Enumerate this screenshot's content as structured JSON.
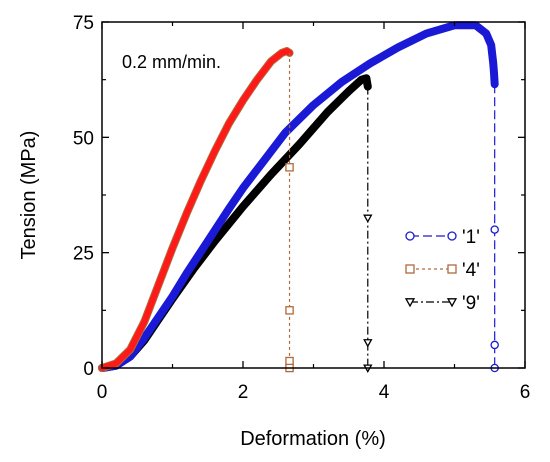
{
  "chart_data": {
    "type": "line",
    "title": "",
    "xlabel": "Deformation (%)",
    "ylabel": "Tension (MPa)",
    "xlim": [
      0,
      6
    ],
    "ylim": [
      0,
      75
    ],
    "xticks": [
      "0",
      "2",
      "4",
      "6"
    ],
    "yticks": [
      "0",
      "25",
      "50",
      "75"
    ],
    "grid": false,
    "legend_position": "right",
    "annotation": "0.2 mm/min.",
    "series": [
      {
        "name": "'1'",
        "color": "#1a1ad6",
        "marker": "circle",
        "dash": "long-dash",
        "x": [
          0,
          0.2,
          0.4,
          0.6,
          0.8,
          1.0,
          1.2,
          1.5,
          1.8,
          2.0,
          2.3,
          2.6,
          3.0,
          3.4,
          3.8,
          4.2,
          4.6,
          5.0,
          5.3,
          5.45,
          5.52,
          5.55,
          5.56,
          5.57,
          5.57,
          5.57,
          5.57
        ],
        "y": [
          0,
          0.5,
          2.5,
          6.5,
          11,
          15.5,
          20.5,
          27.5,
          34.5,
          39,
          45,
          51,
          57,
          62,
          66,
          69.5,
          72.5,
          74.3,
          74.3,
          72.5,
          70,
          66,
          64,
          61.5,
          30,
          5,
          0
        ]
      },
      {
        "name": "'4'",
        "color": "#b06a3a",
        "fill_color": "#ff1a1a",
        "marker": "square",
        "dash": "short-dash",
        "x": [
          0,
          0.2,
          0.4,
          0.6,
          0.8,
          1.0,
          1.2,
          1.4,
          1.6,
          1.8,
          2.0,
          2.2,
          2.4,
          2.55,
          2.62,
          2.66,
          2.66,
          2.66,
          2.66,
          2.66
        ],
        "y": [
          0,
          1,
          4,
          10,
          18,
          26,
          33.5,
          40.5,
          47,
          53,
          58,
          62.5,
          66.5,
          68.3,
          68.7,
          68.3,
          43.5,
          12.5,
          1.5,
          0
        ]
      },
      {
        "name": "'9'",
        "color": "#000000",
        "marker": "triangle-down",
        "dash": "dash-dot",
        "x": [
          0,
          0.2,
          0.4,
          0.6,
          0.8,
          1.0,
          1.3,
          1.6,
          2.0,
          2.4,
          2.8,
          3.2,
          3.5,
          3.68,
          3.75,
          3.77,
          3.77,
          3.77,
          3.77
        ],
        "y": [
          0,
          0.5,
          2.5,
          6,
          10.5,
          15,
          21.5,
          27.5,
          35,
          42,
          48.5,
          55.5,
          60,
          62.5,
          62.8,
          61,
          32.5,
          5.5,
          0
        ]
      }
    ]
  }
}
